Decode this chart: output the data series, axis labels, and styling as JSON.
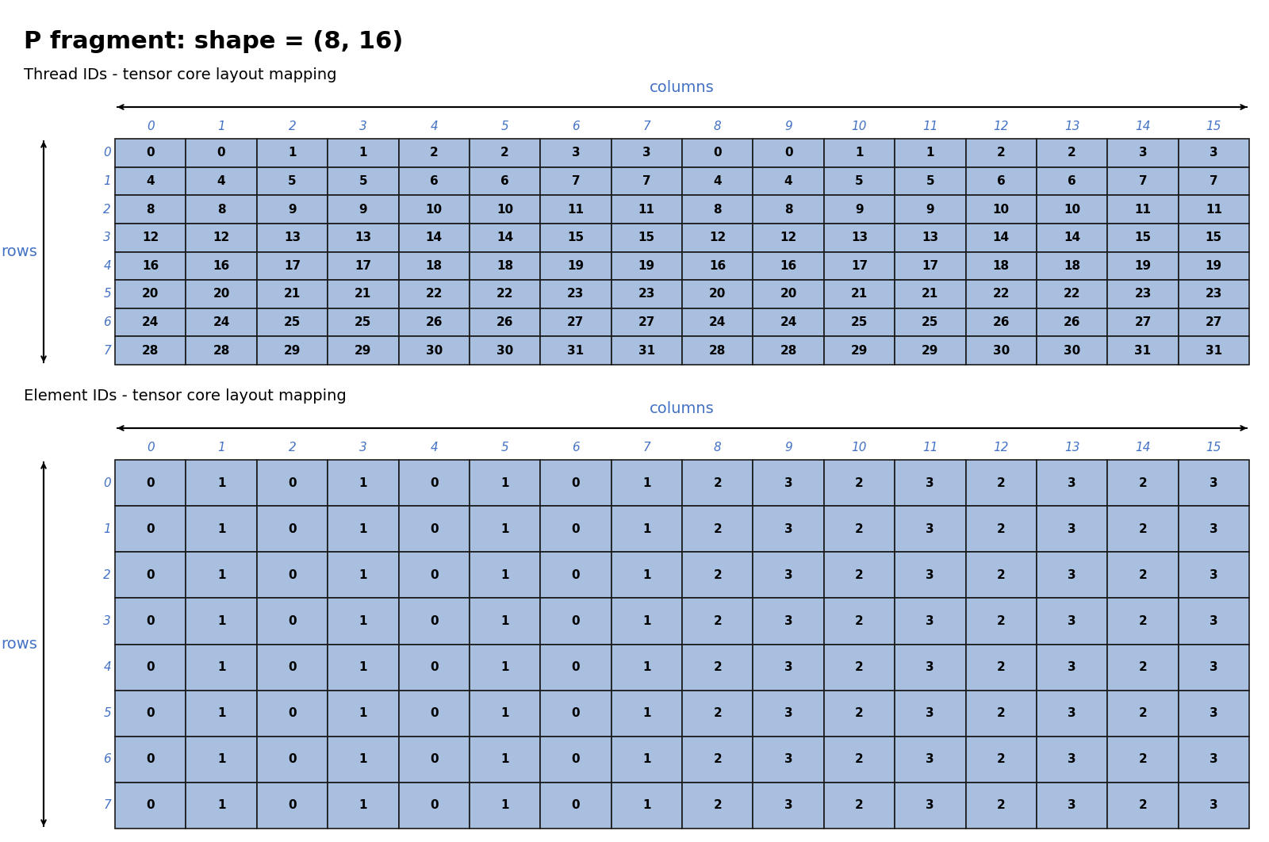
{
  "title": "P fragment: shape = (8, 16)",
  "subtitle1": "Thread IDs - tensor core layout mapping",
  "subtitle2": "Element IDs - tensor core layout mapping",
  "thread_data": [
    [
      0,
      0,
      1,
      1,
      2,
      2,
      3,
      3,
      0,
      0,
      1,
      1,
      2,
      2,
      3,
      3
    ],
    [
      4,
      4,
      5,
      5,
      6,
      6,
      7,
      7,
      4,
      4,
      5,
      5,
      6,
      6,
      7,
      7
    ],
    [
      8,
      8,
      9,
      9,
      10,
      10,
      11,
      11,
      8,
      8,
      9,
      9,
      10,
      10,
      11,
      11
    ],
    [
      12,
      12,
      13,
      13,
      14,
      14,
      15,
      15,
      12,
      12,
      13,
      13,
      14,
      14,
      15,
      15
    ],
    [
      16,
      16,
      17,
      17,
      18,
      18,
      19,
      19,
      16,
      16,
      17,
      17,
      18,
      18,
      19,
      19
    ],
    [
      20,
      20,
      21,
      21,
      22,
      22,
      23,
      23,
      20,
      20,
      21,
      21,
      22,
      22,
      23,
      23
    ],
    [
      24,
      24,
      25,
      25,
      26,
      26,
      27,
      27,
      24,
      24,
      25,
      25,
      26,
      26,
      27,
      27
    ],
    [
      28,
      28,
      29,
      29,
      30,
      30,
      31,
      31,
      28,
      28,
      29,
      29,
      30,
      30,
      31,
      31
    ]
  ],
  "element_data": [
    [
      0,
      1,
      0,
      1,
      0,
      1,
      0,
      1,
      2,
      3,
      2,
      3,
      2,
      3,
      2,
      3
    ],
    [
      0,
      1,
      0,
      1,
      0,
      1,
      0,
      1,
      2,
      3,
      2,
      3,
      2,
      3,
      2,
      3
    ],
    [
      0,
      1,
      0,
      1,
      0,
      1,
      0,
      1,
      2,
      3,
      2,
      3,
      2,
      3,
      2,
      3
    ],
    [
      0,
      1,
      0,
      1,
      0,
      1,
      0,
      1,
      2,
      3,
      2,
      3,
      2,
      3,
      2,
      3
    ],
    [
      0,
      1,
      0,
      1,
      0,
      1,
      0,
      1,
      2,
      3,
      2,
      3,
      2,
      3,
      2,
      3
    ],
    [
      0,
      1,
      0,
      1,
      0,
      1,
      0,
      1,
      2,
      3,
      2,
      3,
      2,
      3,
      2,
      3
    ],
    [
      0,
      1,
      0,
      1,
      0,
      1,
      0,
      1,
      2,
      3,
      2,
      3,
      2,
      3,
      2,
      3
    ],
    [
      0,
      1,
      0,
      1,
      0,
      1,
      0,
      1,
      2,
      3,
      2,
      3,
      2,
      3,
      2,
      3
    ]
  ],
  "num_rows": 8,
  "num_cols": 16,
  "cell_color": "#a8bfdf",
  "cell_edge_color": "#1a1a1a",
  "col_label_color": "#4472c4",
  "row_label_color": "#4472c4",
  "columns_label_color": "#4472c4",
  "rows_label_color": "#4472c4",
  "title_color": "#000000",
  "subtitle_color": "#000000",
  "background_color": "#ffffff",
  "title_fontsize": 22,
  "subtitle_fontsize": 14,
  "cell_fontsize": 11,
  "label_fontsize": 11,
  "axis_label_fontsize": 14
}
